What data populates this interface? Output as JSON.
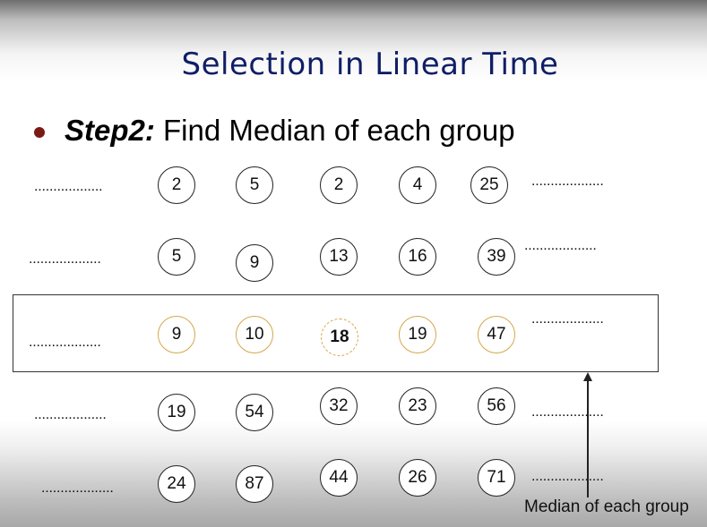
{
  "slide": {
    "title": "Selection in Linear Time",
    "bullet": {
      "label": "Step2:",
      "text": " Find Median of each group"
    },
    "caption": "Median of each group"
  },
  "rows": [
    {
      "values": [
        "2",
        "5",
        "2",
        "4",
        "25"
      ],
      "left_dots": "..................",
      "right_dots": "..................."
    },
    {
      "values": [
        "5",
        "9",
        "13",
        "16",
        "39"
      ],
      "left_dots": "...................",
      "right_dots": "..................."
    },
    {
      "values": [
        "9",
        "10",
        "18",
        "19",
        "47"
      ],
      "left_dots": "...................",
      "right_dots": "..................."
    },
    {
      "values": [
        "19",
        "54",
        "32",
        "23",
        "56"
      ],
      "left_dots": "...................",
      "right_dots": "..................."
    },
    {
      "values": [
        "24",
        "87",
        "44",
        "26",
        "71"
      ],
      "left_dots": "...................",
      "right_dots": "..................."
    }
  ],
  "median_row_index": 2,
  "median_of_medians": "18",
  "colors": {
    "title": "#0f1e66",
    "bullet": "#7b1a14",
    "median_border": "#d6a64a"
  }
}
